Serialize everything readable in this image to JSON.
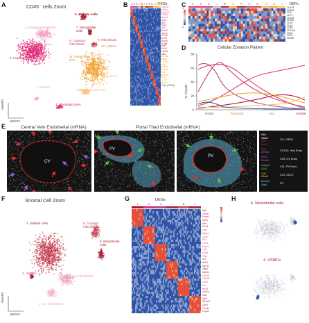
{
  "panels": {
    "A": {
      "letter": "A",
      "title": "CD45⁻ cells Zoom",
      "axis_x": "UMAP1",
      "axis_y": "UMAP2",
      "labels": {
        "hep1": "1. Hepatocytes Portal",
        "hep2": "2. Hepatocytes",
        "stellate": "5. Stellate cells",
        "mesothelial": "7. Mesothelial cells",
        "capsular": "8. Capsular Fibroblasts",
        "fibroblasts": "9. Fibroblasts",
        "clsec": "10. LSECs",
        "pvec": "11. Portal Vein ECs",
        "lsec": "6. LSECs",
        "vsmc": "4. VSMCs",
        "central": "12. Central Vein ECs",
        "cholangio": "3. Cholangiocytes"
      }
    },
    "B": {
      "letter": "B",
      "header": "DEGs",
      "cluster_numbers": [
        "1",
        "2",
        "3",
        "4",
        "5",
        "6",
        "7",
        "8",
        "9",
        "10",
        "11",
        "12"
      ],
      "genes": [
        {
          "text": "Cyp2f2",
          "color": "#e2578f"
        },
        {
          "text": "Hamp",
          "color": "#e2578f"
        },
        {
          "text": "Cyp2e1",
          "color": "#e2578f"
        },
        {
          "text": "Fabp1",
          "color": "#e2578f"
        },
        {
          "text": "Apoc3",
          "color": "#e2578f"
        },
        {
          "text": "Spp1",
          "color": "#b04a8a"
        },
        {
          "text": "Bsn",
          "color": "#b04a8a"
        },
        {
          "text": "Spp1",
          "color": "#b04a8a"
        },
        {
          "text": "Dcn",
          "color": "#a8385a"
        },
        {
          "text": "Dcdh1",
          "color": "#a8385a"
        },
        {
          "text": "Mcam",
          "color": "#a8385a"
        },
        {
          "text": "Clec11",
          "color": "#c7203d"
        },
        {
          "text": "Ecm1",
          "color": "#c7203d"
        },
        {
          "text": "Rspo3",
          "color": "#c7203d"
        },
        {
          "text": "Kcnj8",
          "color": "#c7203d"
        },
        {
          "text": "Myl7",
          "color": "#a82a4a"
        },
        {
          "text": "Krt19",
          "color": "#a82a4a"
        },
        {
          "text": "Upk3b",
          "color": "#a82a4a"
        },
        {
          "text": "Msln",
          "color": "#a82a4a"
        },
        {
          "text": "Clec4g",
          "color": "#e8a02a"
        },
        {
          "text": "Stab2",
          "color": "#e8a02a"
        },
        {
          "text": "Cd32b",
          "color": "#e8a02a"
        },
        {
          "text": "Vwf",
          "color": "#e8a02a"
        },
        {
          "text": "Ephb2",
          "color": "#e8a02a"
        },
        {
          "text": "Rspo3",
          "color": "#e8a02a"
        },
        {
          "text": "Gja5",
          "color": "#f0b84a"
        },
        {
          "text": "Adgrg6",
          "color": "#f0b84a"
        },
        {
          "text": "Dll4",
          "color": "#f0b84a"
        },
        {
          "text": "Cd36",
          "color": "#f0b84a"
        },
        {
          "text": "Wnt9b",
          "color": "#f0b84a"
        },
        {
          "text": "Thy1 (CD90)",
          "color": "#444444"
        }
      ]
    },
    "C": {
      "letter": "C",
      "header": "DEPs",
      "cluster_numbers": [
        "1",
        "2",
        "3",
        "4",
        "5",
        "6",
        "7",
        "8",
        "9",
        "10",
        "11",
        "12"
      ],
      "proteins": [
        "CD105",
        "CD146",
        "CD9",
        "CD71",
        "CD155",
        "CD200",
        "CD29",
        "CD44",
        "CD90",
        "CD140a",
        "CD34",
        "CD31",
        "CD32b"
      ],
      "legend_top": "2",
      "legend_bottom": "-2"
    },
    "D": {
      "letter": "D",
      "title": "Cellular Zonation Pattern",
      "ylabel": "% of spots",
      "y_ticks": [
        "0",
        "20",
        "40",
        "60",
        "80"
      ],
      "x_categories": [
        "Portal",
        "Periportal",
        "Mid",
        "Central"
      ]
    },
    "E": {
      "letter": "E",
      "title_left": "Central Vein Endothelial (mRNA)",
      "title_right": "Portal Triad Endothelial (mRNA)",
      "lumen_cv": "CV",
      "lumen_pv1": "PV",
      "lumen_pv2": "PV",
      "legend": [
        {
          "genes": [
            "Plt4",
            "Stab2",
            "Vwf",
            "Lhx6"
          ],
          "colors": [
            "#ffffff",
            "#ffffff",
            "#e03030",
            "#e03030"
          ],
          "label": "C9: LSECs"
        },
        {
          "genes": [
            "Vwf",
            "Wnt9b"
          ],
          "colors": [
            "#e03030",
            "#a060d0"
          ],
          "label": "C10/11: Vein Endo"
        },
        {
          "genes": [
            "Wnt2",
            "Wnt9b"
          ],
          "colors": [
            "#a060d0",
            "#a060d0"
          ],
          "label": "C10: CV Endo"
        },
        {
          "genes": [
            "Adgrg6",
            "Gja5"
          ],
          "colors": [
            "#60c040",
            "#60c040"
          ],
          "label": "C11: PV Endo"
        },
        {
          "genes": [
            "Vwf",
            "Efnb2"
          ],
          "colors": [
            "#e8d040",
            "#e8d040"
          ],
          "label": "C12: CLEC"
        },
        {
          "genes": [
            "Epcam",
            "Spp1"
          ],
          "colors": [
            "#7ad0f0",
            "#7ad0f0"
          ],
          "label": "PV"
        }
      ]
    },
    "F": {
      "letter": "F",
      "title": "Stromal Cell Zoom",
      "axis_x": "UMAP1",
      "axis_y": "UMAP2",
      "labels": {
        "stellate": "1. Stellate cells",
        "capsule": "5. Capsule Fibroblasts",
        "meso": "6. Mesothelial cells",
        "vsmc": "4. VSMCs",
        "mid": "3. Mid-duct Fibroblasts",
        "cv": "2. CV Fibroblasts"
      }
    },
    "G": {
      "letter": "G",
      "header": "DEGs",
      "cluster_numbers": [
        "1",
        "2",
        "3",
        "4",
        "5",
        "6"
      ],
      "genes": [
        {
          "text": "Ngfr",
          "color": "#c7203d"
        },
        {
          "text": "Clec11",
          "color": "#c7203d"
        },
        {
          "text": "Pcpnb",
          "color": "#c7203d"
        },
        {
          "text": "Rgs5",
          "color": "#c7203d"
        },
        {
          "text": "Reln",
          "color": "#c7203d"
        },
        {
          "text": "Ecm1",
          "color": "#c7203d"
        },
        {
          "text": "Lrat",
          "color": "#c7203d"
        },
        {
          "text": "Igfbp3",
          "color": "#e2578f"
        },
        {
          "text": "Cyr61",
          "color": "#e2578f"
        },
        {
          "text": "Wt1",
          "color": "#e2578f"
        },
        {
          "text": "Cxcl1",
          "color": "#e2578f"
        },
        {
          "text": "Rspo3",
          "color": "#e2578f"
        },
        {
          "text": "Ly6c",
          "color": "#e2578f"
        },
        {
          "text": "Cd34",
          "color": "#b04a8a"
        },
        {
          "text": "Thy1",
          "color": "#b04a8a"
        },
        {
          "text": "Dpt",
          "color": "#b04a8a"
        },
        {
          "text": "Acta2",
          "color": "#a82a4a"
        },
        {
          "text": "Myh11",
          "color": "#a82a4a"
        },
        {
          "text": "Tagln",
          "color": "#a82a4a"
        },
        {
          "text": "Myh11",
          "color": "#a82a4a"
        },
        {
          "text": "Col1a1",
          "color": "#d05050"
        },
        {
          "text": "Col1a2",
          "color": "#d05050"
        },
        {
          "text": "Cd24",
          "color": "#d05050"
        },
        {
          "text": "Dcn",
          "color": "#d05050"
        },
        {
          "text": "Krt19",
          "color": "#a82a4a"
        },
        {
          "text": "Upk3b",
          "color": "#a82a4a"
        },
        {
          "text": "Msln",
          "color": "#a82a4a"
        },
        {
          "text": "Myl7",
          "color": "#a82a4a"
        },
        {
          "text": "Slc4a11",
          "color": "#a82a4a"
        },
        {
          "text": "Gpc3",
          "color": "#a82a4a"
        },
        {
          "text": "Prss12",
          "color": "#a82a4a"
        },
        {
          "text": "Cnga1",
          "color": "#a82a4a"
        }
      ]
    },
    "H": {
      "letter": "H",
      "label_top": "6. Mesothelial cells",
      "label_bottom": "4. VSMCs"
    }
  },
  "colors": {
    "heat_low": "#2f54a6",
    "heat_high": "#e8503a",
    "hepatocyte": "#e0307a",
    "hepatocyte_light": "#f2a0c4",
    "stromal": "#a4182c",
    "endothelial": "#f0a030",
    "stromal_pink": "#d04050"
  }
}
